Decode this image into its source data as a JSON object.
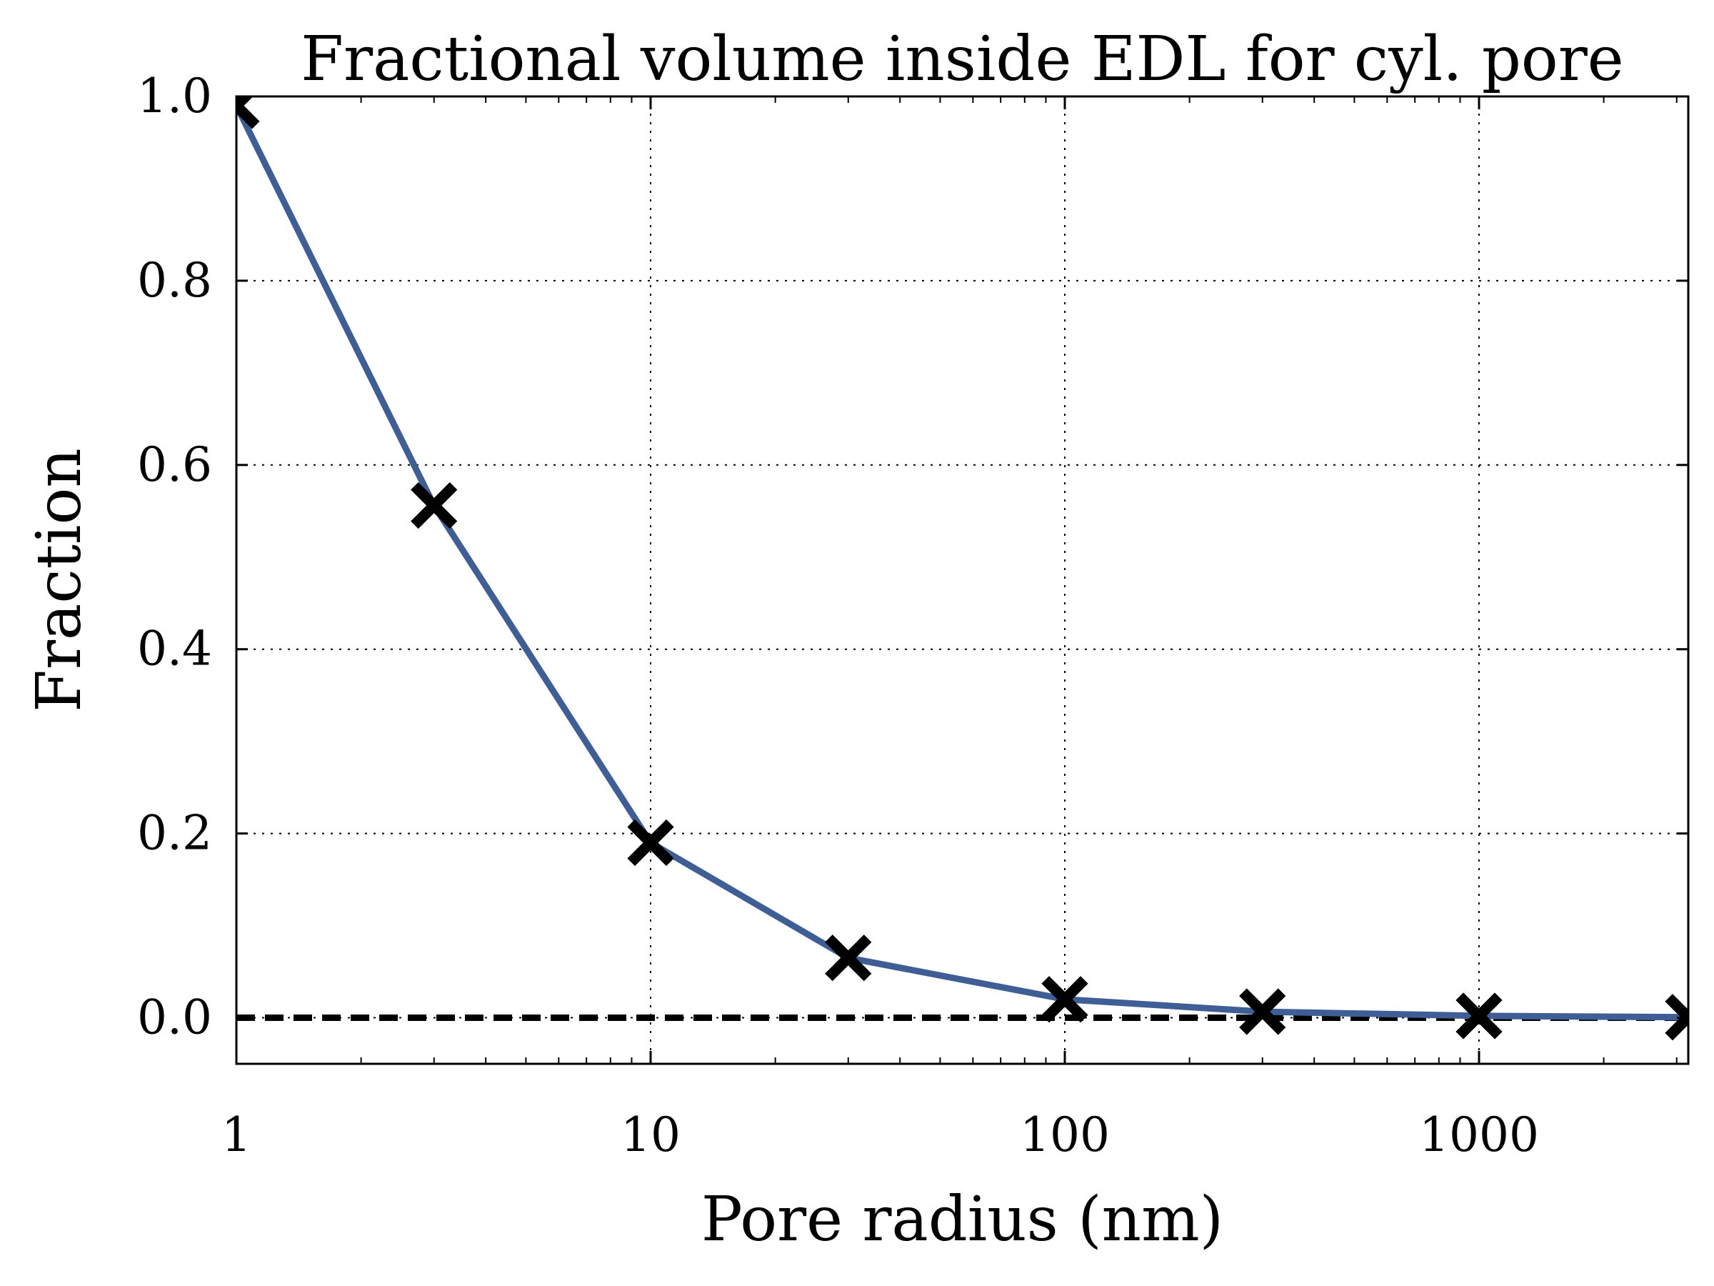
{
  "chart_data": {
    "type": "line",
    "title": "Fractional volume inside EDL for cyl. pore",
    "xlabel": "Pore radius (nm)",
    "ylabel": "Fraction",
    "xscale": "log",
    "xlim": [
      1,
      3200
    ],
    "ylim": [
      -0.05,
      1.0
    ],
    "grid": true,
    "x_ticks": [
      {
        "value": 1,
        "label": "1"
      },
      {
        "value": 10,
        "label": "10"
      },
      {
        "value": 100,
        "label": "100"
      },
      {
        "value": 1000,
        "label": "1000"
      }
    ],
    "y_ticks": [
      {
        "value": 0.0,
        "label": "0.0"
      },
      {
        "value": 0.2,
        "label": "0.2"
      },
      {
        "value": 0.4,
        "label": "0.4"
      },
      {
        "value": 0.6,
        "label": "0.6"
      },
      {
        "value": 0.8,
        "label": "0.8"
      },
      {
        "value": 1.0,
        "label": "1.0"
      }
    ],
    "series": [
      {
        "style": "solid line with x markers",
        "color": "#3f5e96",
        "marker_color": "#000000",
        "x": [
          1,
          3,
          10,
          30,
          100,
          300,
          1000,
          3200
        ],
        "y": [
          0.99,
          0.556,
          0.19,
          0.065,
          0.02,
          0.0066,
          0.002,
          0.0006
        ]
      }
    ],
    "reference_line": {
      "y": 0.0,
      "style": "dashed",
      "color": "#000000"
    }
  }
}
